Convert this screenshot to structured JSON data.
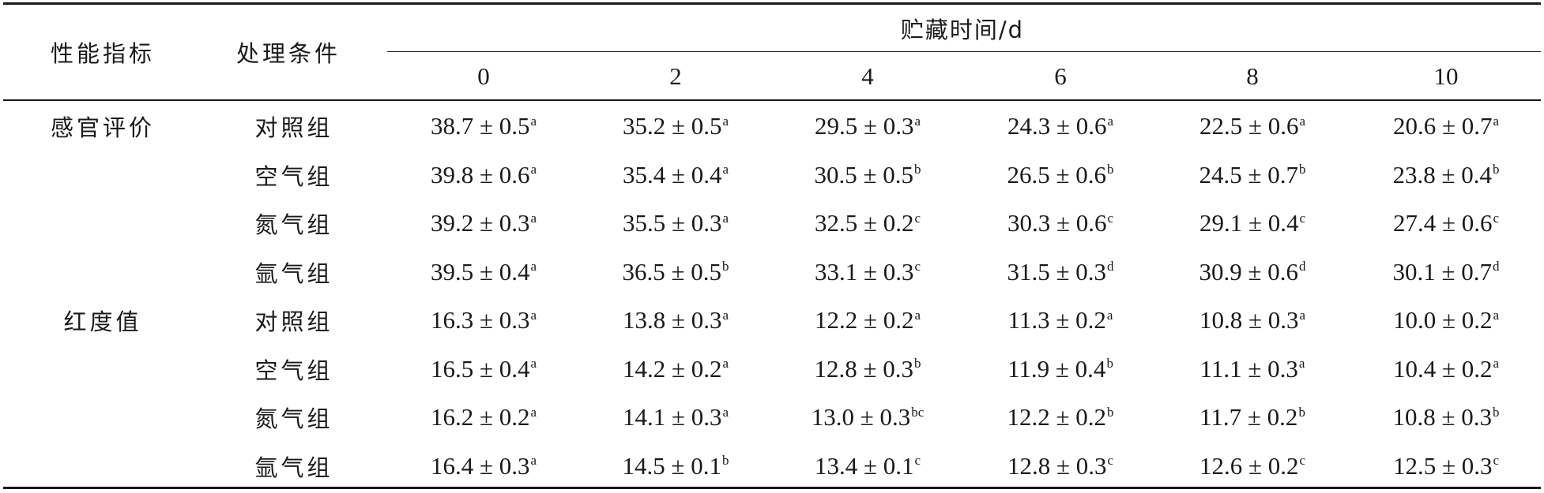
{
  "header": {
    "metric_label": "性能指标",
    "condition_label": "处理条件",
    "group_label": "贮藏时间/d",
    "days": [
      "0",
      "2",
      "4",
      "6",
      "8",
      "10"
    ]
  },
  "sections": [
    {
      "metric": "感官评价",
      "rows": [
        {
          "condition": "对照组",
          "values": [
            {
              "v": "38.7 ± 0.5",
              "s": "a"
            },
            {
              "v": "35.2 ± 0.5",
              "s": "a"
            },
            {
              "v": "29.5 ± 0.3",
              "s": "a"
            },
            {
              "v": "24.3 ± 0.6",
              "s": "a"
            },
            {
              "v": "22.5 ± 0.6",
              "s": "a"
            },
            {
              "v": "20.6 ± 0.7",
              "s": "a"
            }
          ]
        },
        {
          "condition": "空气组",
          "values": [
            {
              "v": "39.8 ± 0.6",
              "s": "a"
            },
            {
              "v": "35.4 ± 0.4",
              "s": "a"
            },
            {
              "v": "30.5 ± 0.5",
              "s": "b"
            },
            {
              "v": "26.5 ± 0.6",
              "s": "b"
            },
            {
              "v": "24.5 ± 0.7",
              "s": "b"
            },
            {
              "v": "23.8 ± 0.4",
              "s": "b"
            }
          ]
        },
        {
          "condition": "氮气组",
          "values": [
            {
              "v": "39.2 ± 0.3",
              "s": "a"
            },
            {
              "v": "35.5 ± 0.3",
              "s": "a"
            },
            {
              "v": "32.5 ± 0.2",
              "s": "c"
            },
            {
              "v": "30.3 ± 0.6",
              "s": "c"
            },
            {
              "v": "29.1 ± 0.4",
              "s": "c"
            },
            {
              "v": "27.4 ± 0.6",
              "s": "c"
            }
          ]
        },
        {
          "condition": "氩气组",
          "values": [
            {
              "v": "39.5 ± 0.4",
              "s": "a"
            },
            {
              "v": "36.5 ± 0.5",
              "s": "b"
            },
            {
              "v": "33.1 ± 0.3",
              "s": "c"
            },
            {
              "v": "31.5 ± 0.3",
              "s": "d"
            },
            {
              "v": "30.9 ± 0.6",
              "s": "d"
            },
            {
              "v": "30.1 ± 0.7",
              "s": "d"
            }
          ]
        }
      ]
    },
    {
      "metric": "红度值",
      "rows": [
        {
          "condition": "对照组",
          "values": [
            {
              "v": "16.3 ± 0.3",
              "s": "a"
            },
            {
              "v": "13.8 ± 0.3",
              "s": "a"
            },
            {
              "v": "12.2 ± 0.2",
              "s": "a"
            },
            {
              "v": "11.3 ± 0.2",
              "s": "a"
            },
            {
              "v": "10.8 ± 0.3",
              "s": "a"
            },
            {
              "v": "10.0 ± 0.2",
              "s": "a"
            }
          ]
        },
        {
          "condition": "空气组",
          "values": [
            {
              "v": "16.5 ± 0.4",
              "s": "a"
            },
            {
              "v": "14.2 ± 0.2",
              "s": "a"
            },
            {
              "v": "12.8 ± 0.3",
              "s": "b"
            },
            {
              "v": "11.9 ± 0.4",
              "s": "b"
            },
            {
              "v": "11.1 ± 0.3",
              "s": "a"
            },
            {
              "v": "10.4 ± 0.2",
              "s": "a"
            }
          ]
        },
        {
          "condition": "氮气组",
          "values": [
            {
              "v": "16.2 ± 0.2",
              "s": "a"
            },
            {
              "v": "14.1 ± 0.3",
              "s": "a"
            },
            {
              "v": "13.0 ± 0.3",
              "s": "bc"
            },
            {
              "v": "12.2 ± 0.2",
              "s": "b"
            },
            {
              "v": "11.7 ± 0.2",
              "s": "b"
            },
            {
              "v": "10.8 ± 0.3",
              "s": "b"
            }
          ]
        },
        {
          "condition": "氩气组",
          "values": [
            {
              "v": "16.4 ± 0.3",
              "s": "a"
            },
            {
              "v": "14.5 ± 0.1",
              "s": "b"
            },
            {
              "v": "13.4 ± 0.1",
              "s": "c"
            },
            {
              "v": "12.8 ± 0.3",
              "s": "c"
            },
            {
              "v": "12.6 ± 0.2",
              "s": "c"
            },
            {
              "v": "12.5 ± 0.3",
              "s": "c"
            }
          ]
        }
      ]
    }
  ]
}
